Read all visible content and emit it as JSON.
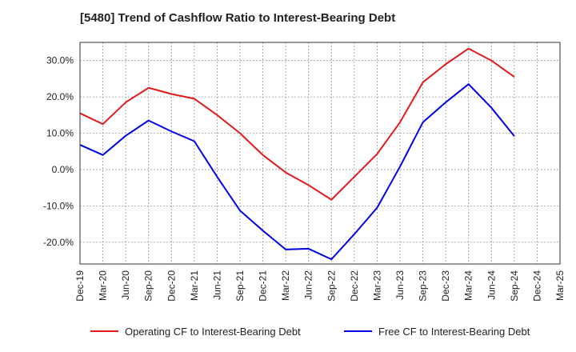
{
  "chart_data": {
    "type": "line",
    "title": "[5480]  Trend of Cashflow Ratio to Interest-Bearing Debt",
    "xlabel": "",
    "ylabel": "",
    "categories": [
      "Dec-19",
      "Mar-20",
      "Jun-20",
      "Sep-20",
      "Dec-20",
      "Mar-21",
      "Jun-21",
      "Sep-21",
      "Dec-21",
      "Mar-22",
      "Jun-22",
      "Sep-22",
      "Dec-22",
      "Mar-23",
      "Jun-23",
      "Sep-23",
      "Dec-23",
      "Mar-24",
      "Jun-24",
      "Sep-24",
      "Dec-24",
      "Mar-25"
    ],
    "ylim": [
      -26,
      35
    ],
    "yticks": [
      -20,
      -10,
      0,
      10,
      20,
      30
    ],
    "ytick_labels": [
      "-20.0%",
      "-10.0%",
      "0.0%",
      "10.0%",
      "20.0%",
      "30.0%"
    ],
    "grid": true,
    "legend_position": "bottom",
    "series": [
      {
        "name": "Operating CF to Interest-Bearing Debt",
        "color": "#e31a1c",
        "values": [
          15.5,
          12.5,
          18.5,
          22.5,
          20.8,
          19.5,
          15.0,
          10.0,
          4.0,
          -0.8,
          -4.3,
          -8.3,
          -2.0,
          4.3,
          13.0,
          24.0,
          29.0,
          33.3,
          30.0,
          25.5,
          null,
          null
        ]
      },
      {
        "name": "Free CF to Interest-Bearing Debt",
        "color": "#0000e6",
        "values": [
          6.8,
          4.0,
          9.3,
          13.5,
          10.5,
          7.8,
          -2.0,
          -11.3,
          -16.8,
          -22.0,
          -21.8,
          -24.7,
          -17.8,
          -10.5,
          0.8,
          13.0,
          18.5,
          23.5,
          17.0,
          9.2,
          null,
          null
        ]
      }
    ]
  }
}
